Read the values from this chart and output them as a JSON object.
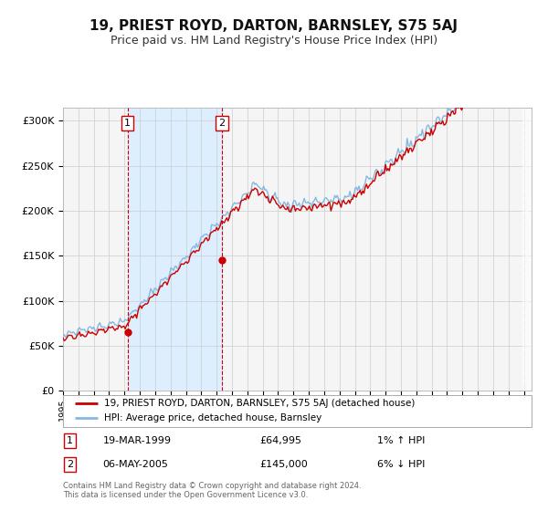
{
  "title": "19, PRIEST ROYD, DARTON, BARNSLEY, S75 5AJ",
  "subtitle": "Price paid vs. HM Land Registry's House Price Index (HPI)",
  "title_fontsize": 11,
  "subtitle_fontsize": 9,
  "ylabel_values": [
    "£0",
    "£50K",
    "£100K",
    "£150K",
    "£200K",
    "£250K",
    "£300K"
  ],
  "ytick_values": [
    0,
    50000,
    100000,
    150000,
    200000,
    250000,
    300000
  ],
  "ylim": [
    0,
    315000
  ],
  "xlim_start": 1995.0,
  "xlim_end": 2025.5,
  "background_color": "#ffffff",
  "plot_bg_color": "#f5f5f5",
  "grid_color": "#cccccc",
  "hpi_line_color": "#85b8e0",
  "price_line_color": "#cc0000",
  "shade_color": "#ddeeff",
  "marker_color": "#cc0000",
  "dashed_color": "#cc0000",
  "annotation_box_color": "#cc0000",
  "legend_line1": "19, PRIEST ROYD, DARTON, BARNSLEY, S75 5AJ (detached house)",
  "legend_line2": "HPI: Average price, detached house, Barnsley",
  "sale1_date": "19-MAR-1999",
  "sale1_price": "£64,995",
  "sale1_hpi": "1% ↑ HPI",
  "sale1_year": 1999.21,
  "sale1_value": 64995,
  "sale2_date": "06-MAY-2005",
  "sale2_price": "£145,000",
  "sale2_hpi": "6% ↓ HPI",
  "sale2_year": 2005.35,
  "sale2_value": 145000,
  "footer": "Contains HM Land Registry data © Crown copyright and database right 2024.\nThis data is licensed under the Open Government Licence v3.0."
}
